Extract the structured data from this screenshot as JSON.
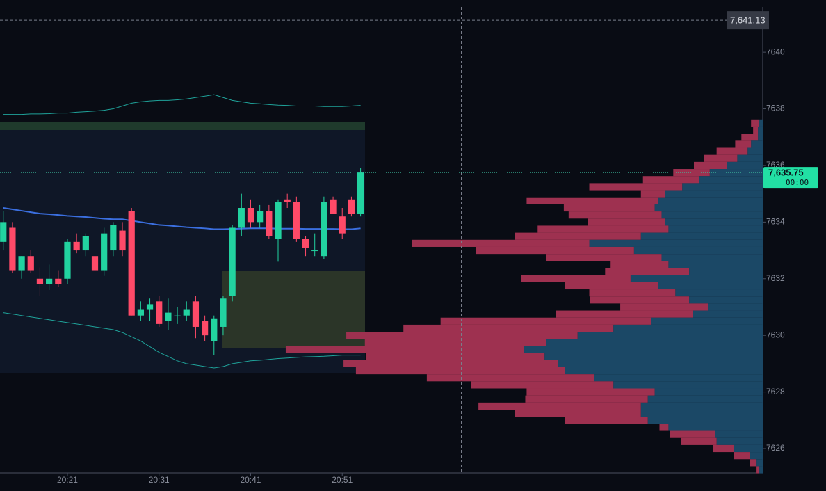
{
  "chart_data": {
    "type": "candlestick",
    "categories": [
      null,
      null,
      null,
      null,
      null,
      null,
      null,
      "20:21",
      null,
      null,
      null,
      null,
      null,
      null,
      null,
      null,
      null,
      "20:31",
      null,
      null,
      null,
      null,
      null,
      null,
      null,
      null,
      null,
      "20:41",
      null,
      null,
      null,
      null,
      null,
      null,
      null,
      null,
      null,
      "20:51",
      null,
      null
    ],
    "open": [
      7633.3,
      7633.8,
      7632.3,
      7632.8,
      7632.0,
      7631.8,
      7632.0,
      7632.0,
      7633.3,
      7633.0,
      7632.8,
      7632.3,
      7633.0,
      7633.7,
      7634.4,
      7630.7,
      7630.9,
      7631.2,
      7630.5,
      7630.7,
      7630.7,
      7631.2,
      7630.5,
      7629.8,
      7630.3,
      7631.4,
      7633.8,
      7634.5,
      7634.0,
      7634.4,
      7633.4,
      7634.8,
      7634.7,
      7633.4,
      7633.0,
      7632.8,
      7634.8,
      7634.2,
      7634.8,
      7634.3
    ],
    "high": [
      7634.4,
      7634.0,
      7632.8,
      7633.0,
      7632.4,
      7632.5,
      7632.3,
      7633.4,
      7633.6,
      7633.6,
      7633.2,
      7633.8,
      7634.0,
      7634.0,
      7634.5,
      7631.2,
      7631.3,
      7631.4,
      7631.3,
      7631.0,
      7631.2,
      7631.4,
      7630.7,
      7630.7,
      7631.4,
      7633.9,
      7635.0,
      7634.8,
      7634.6,
      7634.6,
      7634.8,
      7635.0,
      7634.9,
      7633.5,
      7633.6,
      7634.9,
      7634.9,
      7634.5,
      7634.9,
      7635.9
    ],
    "low": [
      7633.0,
      7632.2,
      7632.0,
      7632.2,
      7631.4,
      7631.6,
      7631.7,
      7631.8,
      7632.9,
      7632.8,
      7631.8,
      7632.1,
      7632.8,
      7632.8,
      7630.7,
      7630.5,
      7630.5,
      7630.3,
      7630.2,
      7630.4,
      7630.5,
      7629.9,
      7629.8,
      7629.3,
      7630.0,
      7631.2,
      7633.5,
      7633.8,
      7633.8,
      7633.4,
      7632.6,
      7634.5,
      7633.3,
      7632.8,
      7632.8,
      7632.7,
      7634.3,
      7633.4,
      7634.2,
      7634.2
    ],
    "close": [
      7634.0,
      7632.3,
      7632.8,
      7632.3,
      7631.8,
      7632.0,
      7631.8,
      7633.3,
      7633.0,
      7633.5,
      7632.3,
      7633.6,
      7633.9,
      7633.0,
      7630.7,
      7630.9,
      7631.1,
      7630.4,
      7630.8,
      7630.7,
      7630.9,
      7630.3,
      7630.0,
      7630.6,
      7631.3,
      7633.8,
      7634.5,
      7634.0,
      7634.4,
      7633.5,
      7634.7,
      7634.7,
      7633.4,
      7633.1,
      7633.0,
      7634.7,
      7634.3,
      7633.6,
      7634.3,
      7635.75
    ],
    "up_color": "#22d3a0",
    "down_color": "#ff4a68",
    "overlays": [
      {
        "color": "#3b6fe0",
        "values": [
          7634.5,
          7634.45,
          7634.4,
          7634.35,
          7634.3,
          7634.28,
          7634.25,
          7634.22,
          7634.2,
          7634.18,
          7634.15,
          7634.12,
          7634.1,
          7634.1,
          7634.05,
          7634.0,
          7633.95,
          7633.9,
          7633.88,
          7633.85,
          7633.82,
          7633.8,
          7633.78,
          7633.75,
          7633.75,
          7633.76,
          7633.77,
          7633.78,
          7633.78,
          7633.78,
          7633.77,
          7633.77,
          7633.77,
          7633.76,
          7633.76,
          7633.76,
          7633.76,
          7633.75,
          7633.75,
          7633.78
        ]
      },
      {
        "color": "#1fa39a",
        "values": [
          7637.8,
          7637.8,
          7637.8,
          7637.82,
          7637.82,
          7637.83,
          7637.85,
          7637.85,
          7637.88,
          7637.9,
          7637.92,
          7637.95,
          7638.0,
          7638.1,
          7638.2,
          7638.25,
          7638.28,
          7638.3,
          7638.3,
          7638.32,
          7638.35,
          7638.4,
          7638.45,
          7638.5,
          7638.4,
          7638.3,
          7638.25,
          7638.2,
          7638.18,
          7638.15,
          7638.13,
          7638.12,
          7638.1,
          7638.1,
          7638.1,
          7638.08,
          7638.08,
          7638.08,
          7638.1,
          7638.12
        ]
      },
      {
        "color": "#1fa39a",
        "values": [
          7630.8,
          7630.75,
          7630.7,
          7630.65,
          7630.6,
          7630.55,
          7630.5,
          7630.45,
          7630.4,
          7630.35,
          7630.3,
          7630.25,
          7630.2,
          7630.1,
          7629.95,
          7629.8,
          7629.6,
          7629.4,
          7629.25,
          7629.1,
          7629.0,
          7628.95,
          7628.9,
          7628.85,
          7628.9,
          7629.0,
          7629.05,
          7629.1,
          7629.12,
          7629.15,
          7629.18,
          7629.2,
          7629.22,
          7629.24,
          7629.25,
          7629.26,
          7629.28,
          7629.3,
          7629.3,
          7629.3
        ]
      }
    ],
    "ylim": [
      7625.14,
      7641.6
    ],
    "yticks": [
      7626,
      7628,
      7630,
      7632,
      7634,
      7636,
      7638,
      7640
    ],
    "xlim": [
      -0.36,
      82.9
    ],
    "last_price": {
      "value": 7635.75,
      "label": "7,635.75"
    },
    "countdown": "00:00",
    "crosshair": {
      "x": 50,
      "price": {
        "value": 7641.13,
        "label": "7,641.13"
      }
    },
    "profile": {
      "levels": [
        7637.5,
        7637.25,
        7637,
        7636.75,
        7636.5,
        7636.25,
        7636,
        7635.75,
        7635.5,
        7635.25,
        7635,
        7634.75,
        7634.5,
        7634.25,
        7634,
        7633.75,
        7633.5,
        7633.25,
        7633,
        7632.75,
        7632.5,
        7632.25,
        7632,
        7631.75,
        7631.5,
        7631.25,
        7631,
        7630.75,
        7630.5,
        7630.25,
        7630,
        7629.75,
        7629.5,
        7629.25,
        7629,
        7628.75,
        7628.5,
        7628.25,
        7628,
        7627.75,
        7627.5,
        7627.25,
        7627,
        7626.75,
        7626.5,
        7626.25,
        7626,
        7625.75,
        7625.5,
        7625.25
      ],
      "xlim": [
        0,
        700
      ],
      "series": [
        {
          "color": "#1b4866",
          "values": [
            5,
            7,
            7,
            17,
            22,
            37,
            52,
            77,
            92,
            117,
            142,
            152,
            157,
            147,
            142,
            137,
            177,
            252,
            187,
            147,
            137,
            107,
            192,
            152,
            127,
            107,
            79,
            102,
            162,
            217,
            269,
            315,
            347,
            317,
            297,
            287,
            245,
            217,
            157,
            167,
            177,
            177,
            167,
            137,
            69,
            67,
            42,
            19,
            9,
            5
          ]
        },
        {
          "color": "#9e3150",
          "values": [
            12,
            7,
            24,
            23,
            45,
            48,
            48,
            53,
            82,
            135,
            35,
            191,
            132,
            135,
            112,
            190,
            183,
            258,
            230,
            168,
            84,
            122,
            159,
            135,
            125,
            144,
            128,
            198,
            306,
            305,
            336,
            263,
            346,
            259,
            312,
            304,
            243,
            207,
            186,
            178,
            236,
            183,
            120,
            13,
            66,
            52,
            30,
            23,
            10,
            4
          ]
        }
      ]
    }
  }
}
